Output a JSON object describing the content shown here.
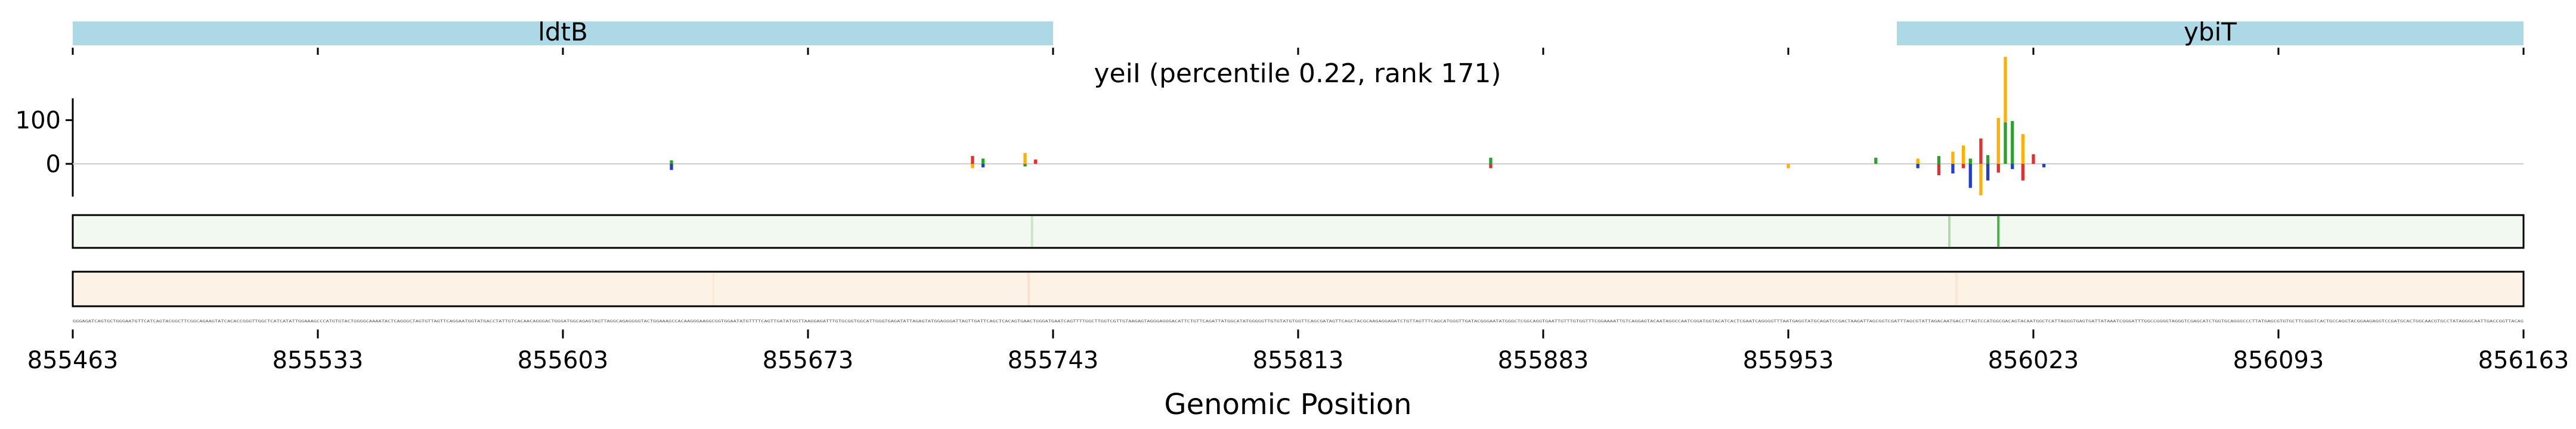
{
  "chart_data": {
    "type": "track-plot",
    "title": "yeiI (percentile 0.22, rank 171)",
    "xlabel": "Genomic Position",
    "xlim": [
      855463,
      856163
    ],
    "x_ticks": [
      "855463",
      "855533",
      "855603",
      "855673",
      "855743",
      "855813",
      "855883",
      "855953",
      "856023",
      "856093",
      "856163"
    ],
    "genes": [
      {
        "name": "ldtB",
        "start": 855463,
        "end": 855743
      },
      {
        "name": "ybiT",
        "start": 855984,
        "end": 856163
      }
    ],
    "attribution": {
      "ylim": [
        -75,
        150
      ],
      "y_ticks": [
        "100",
        "0"
      ],
      "y_tick_values": [
        100,
        0
      ],
      "base_colors": {
        "A": "#2ca02c",
        "C": "#1f3fcc",
        "G": "#ffb000",
        "T": "#e03030"
      },
      "peaks": [
        {
          "pos": 855634,
          "values": [
            {
              "base": "C",
              "v": -14
            },
            {
              "base": "A",
              "v": 8
            }
          ]
        },
        {
          "pos": 855720,
          "values": [
            {
              "base": "T",
              "v": 18
            },
            {
              "base": "G",
              "v": -10
            }
          ]
        },
        {
          "pos": 855723,
          "values": [
            {
              "base": "A",
              "v": 12
            },
            {
              "base": "C",
              "v": -8
            }
          ]
        },
        {
          "pos": 855735,
          "values": [
            {
              "base": "G",
              "v": 25
            },
            {
              "base": "A",
              "v": -6
            }
          ]
        },
        {
          "pos": 855738,
          "values": [
            {
              "base": "T",
              "v": 10
            }
          ]
        },
        {
          "pos": 855868,
          "values": [
            {
              "base": "A",
              "v": 14
            },
            {
              "base": "T",
              "v": -10
            }
          ]
        },
        {
          "pos": 855953,
          "values": [
            {
              "base": "G",
              "v": -10
            }
          ]
        },
        {
          "pos": 855978,
          "values": [
            {
              "base": "A",
              "v": 14
            }
          ]
        },
        {
          "pos": 855990,
          "values": [
            {
              "base": "C",
              "v": -10
            },
            {
              "base": "G",
              "v": 12
            }
          ]
        },
        {
          "pos": 855996,
          "values": [
            {
              "base": "T",
              "v": -26
            },
            {
              "base": "A",
              "v": 18
            }
          ]
        },
        {
          "pos": 856000,
          "values": [
            {
              "base": "G",
              "v": 28
            },
            {
              "base": "C",
              "v": -22
            }
          ]
        },
        {
          "pos": 856003,
          "values": [
            {
              "base": "G",
              "v": 42
            },
            {
              "base": "T",
              "v": -10
            }
          ]
        },
        {
          "pos": 856005,
          "values": [
            {
              "base": "C",
              "v": -55
            },
            {
              "base": "A",
              "v": 12
            }
          ]
        },
        {
          "pos": 856008,
          "values": [
            {
              "base": "T",
              "v": 58
            },
            {
              "base": "G",
              "v": -72
            }
          ]
        },
        {
          "pos": 856010,
          "values": [
            {
              "base": "A",
              "v": 20
            },
            {
              "base": "C",
              "v": -38
            }
          ]
        },
        {
          "pos": 856013,
          "values": [
            {
              "base": "G",
              "v": 105
            },
            {
              "base": "T",
              "v": -20
            }
          ]
        },
        {
          "pos": 856015,
          "values": [
            {
              "base": "A",
              "v": 95
            },
            {
              "base": "G",
              "v": 150
            }
          ]
        },
        {
          "pos": 856017,
          "values": [
            {
              "base": "A",
              "v": 98
            },
            {
              "base": "C",
              "v": -12
            }
          ]
        },
        {
          "pos": 856020,
          "values": [
            {
              "base": "G",
              "v": 68
            },
            {
              "base": "T",
              "v": -38
            }
          ]
        },
        {
          "pos": 856023,
          "values": [
            {
              "base": "T",
              "v": 22
            }
          ]
        },
        {
          "pos": 856026,
          "values": [
            {
              "base": "C",
              "v": -8
            }
          ]
        }
      ]
    },
    "green_track": {
      "color": "#2ca02c",
      "highlights": [
        {
          "pos": 856013,
          "strength": 0.85
        },
        {
          "pos": 855999,
          "strength": 0.35
        },
        {
          "pos": 855737,
          "strength": 0.2
        }
      ]
    },
    "orange_track": {
      "color": "#f4a460",
      "highlights": [
        {
          "pos": 855736,
          "strength": 0.2
        },
        {
          "pos": 856001,
          "strength": 0.15
        },
        {
          "pos": 855646,
          "strength": 0.1
        }
      ]
    },
    "sequence": "GGGAGATCAGTGCTGGGAATGTTCATCAGTACGGCTTCGGCAGAAGTATCACACCGGGTTGGCTCATCATATTGGAAAGCCCATGTGTACTGGGGCAAAATACTCAGGGCTAGTGTTAGTTCAGGAATGGTATGACCTATTGTCACAACAGGGACTGGGATGGCAGAGTAGTTAGGCAGAGGGGTACTGGAAAGCCACAAGGGAAGGCGGTGGAATATGTTTTCAGTTGATATGGTTAAGGAGATTTGTGCGGTGGCATTGGGTGAGATATTAGAGTATGGAGGGATTAGTTGATTCAGCTCACAGTGAACTGGGATGAATCAGTTTTGGCTTGGTCGTTGTAAGAGTAGGGAGGGACATTCTGTTCAGATTATGGCATATGGGGGTTGTGTATGTGGTTCAGCGATAGTTCAGCTACGCAAGAGGAGATCTGTTAGTTTCAGCATGGGTTGATACGGGAATATGGGCTCGGCAGGTGAATTGTTTGTGGTTTCGGAAAATTGTCAGGAGTACAATAGGCCAATCGGATGGTACATCACTCGAATCAGGGGTTTAATGAGGTATGCAGATCCGACTAAGATTAGCGGTCGATTTAGCGTATTAGACAATGACCTTAGTCCATGGCGACAGTACAATGGCTCATTAGGGTGAGTGATTATAAATCGGGATTTGGCCGGGGTAGGGTCGAGCATCTGGTGCAGGGCCCTTATGAGCGTGTGCTTCGGGTCACTGCCAGGTACGGAAGAGGTCCGATGCACTGGCAACGTGCCTATAGGGCAATTGACCGGTTACAG"
  }
}
